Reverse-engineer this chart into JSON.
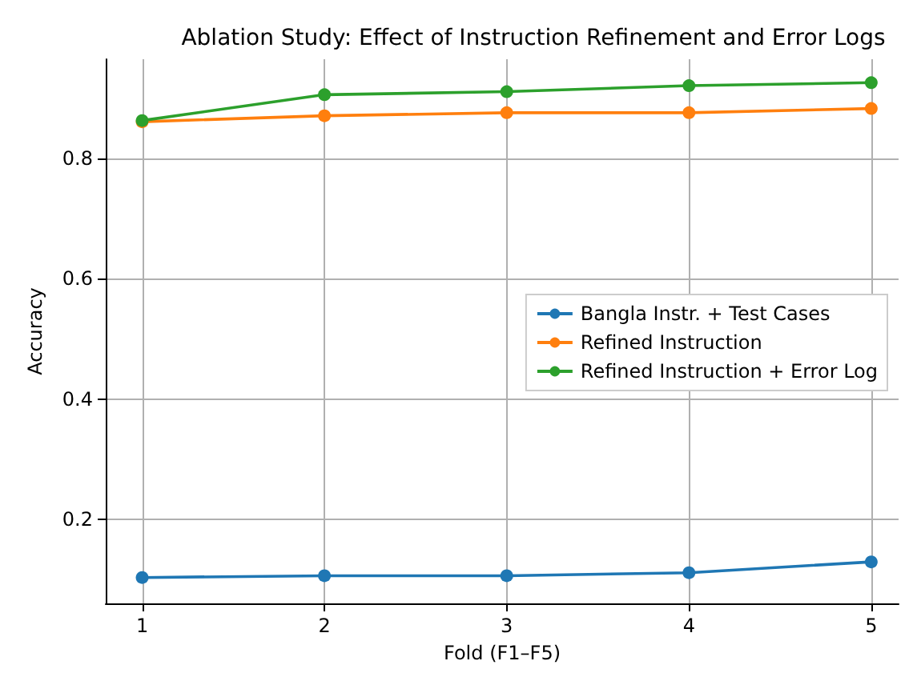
{
  "chart_data": {
    "type": "line",
    "title": "Ablation Study: Effect of Instruction Refinement and Error Logs",
    "xlabel": "Fold (F1–F5)",
    "ylabel": "Accuracy",
    "x": [
      1,
      2,
      3,
      4,
      5
    ],
    "series": [
      {
        "name": "Bangla Instr. + Test Cases",
        "color": "#1f77b4",
        "values": [
          0.103,
          0.106,
          0.106,
          0.111,
          0.129
        ]
      },
      {
        "name": "Refined Instruction",
        "color": "#ff7f0e",
        "values": [
          0.861,
          0.871,
          0.876,
          0.876,
          0.883
        ]
      },
      {
        "name": "Refined Instruction + Error Log",
        "color": "#2ca02c",
        "values": [
          0.863,
          0.906,
          0.911,
          0.921,
          0.926
        ]
      }
    ],
    "xlim": [
      0.8,
      5.15
    ],
    "xticks": [
      1,
      2,
      3,
      4,
      5
    ],
    "ylim": [
      0.06,
      0.965
    ],
    "yticks": [
      0.2,
      0.4,
      0.6,
      0.8
    ],
    "grid": true,
    "legend": "right",
    "marker": "circle",
    "line_style": "solid"
  }
}
